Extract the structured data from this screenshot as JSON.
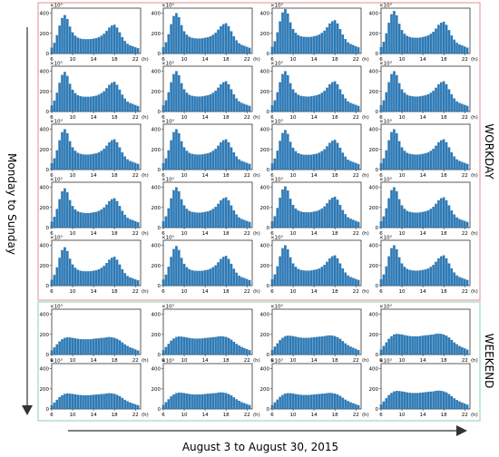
{
  "labels": {
    "left_axis": "Monday to Sunday",
    "bottom_axis": "August 3 to August 30, 2015",
    "workday_group": "WORKDAY",
    "weekend_group": "WEEKEND"
  },
  "colors": {
    "bar": "#2b7bba",
    "bar_edge": "#1f5f91",
    "workday_box": "#e8a0a0",
    "weekend_box": "#9fd4c4",
    "panel_frame": "#333333",
    "arrow": "#333333"
  },
  "chart_data": {
    "type": "bar",
    "layout": "small multiples: 7 rows (Monday to Sunday) x 4 columns (weeks of August 3 to August 30, 2015)",
    "panel_multiplier_label": "×10³",
    "x_unit_label": "(h)",
    "x_ticks": [
      "6",
      "10",
      "14",
      "18",
      "22"
    ],
    "y_ticks": [
      "0",
      "200",
      "400"
    ],
    "xlim": [
      6,
      23
    ],
    "ylim": [
      0,
      450
    ],
    "hours": [
      6,
      6.5,
      7,
      7.5,
      8,
      8.5,
      9,
      9.5,
      10,
      10.5,
      11,
      11.5,
      12,
      12.5,
      13,
      13.5,
      14,
      14.5,
      15,
      15.5,
      16,
      16.5,
      17,
      17.5,
      18,
      18.5,
      19,
      19.5,
      20,
      20.5,
      21,
      21.5,
      22,
      22.5
    ],
    "profiles": {
      "workday": [
        60,
        110,
        190,
        290,
        370,
        400,
        360,
        280,
        220,
        185,
        165,
        155,
        150,
        148,
        148,
        150,
        155,
        160,
        170,
        185,
        205,
        235,
        270,
        290,
        300,
        270,
        220,
        170,
        130,
        100,
        85,
        75,
        65,
        55
      ],
      "weekend": [
        40,
        70,
        100,
        130,
        150,
        165,
        170,
        168,
        165,
        160,
        155,
        152,
        150,
        150,
        150,
        152,
        155,
        158,
        160,
        163,
        165,
        170,
        172,
        170,
        165,
        155,
        140,
        120,
        100,
        85,
        70,
        60,
        50,
        40
      ]
    },
    "rows": [
      {
        "day_type": "workday",
        "scales": [
          0.95,
          1.0,
          1.1,
          1.05
        ]
      },
      {
        "day_type": "workday",
        "scales": [
          0.98,
          1.0,
          1.0,
          1.0
        ]
      },
      {
        "day_type": "workday",
        "scales": [
          1.0,
          1.0,
          0.98,
          1.0
        ]
      },
      {
        "day_type": "workday",
        "scales": [
          0.97,
          1.0,
          1.02,
          1.0
        ]
      },
      {
        "day_type": "workday",
        "scales": [
          0.95,
          0.98,
          1.0,
          1.0
        ]
      },
      {
        "day_type": "weekend",
        "scales": [
          1.0,
          1.05,
          1.1,
          1.2
        ]
      },
      {
        "day_type": "weekend",
        "scales": [
          0.9,
          0.95,
          0.92,
          1.05
        ]
      }
    ]
  }
}
